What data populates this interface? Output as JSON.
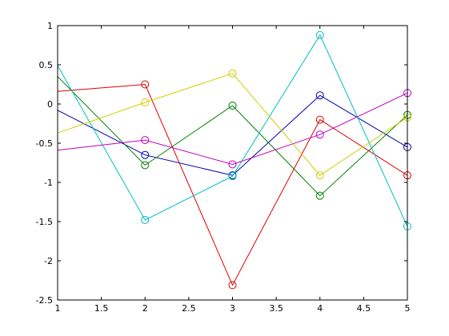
{
  "chart_data": {
    "type": "line",
    "title": "",
    "xlabel": "",
    "ylabel": "",
    "xlim": [
      1,
      5
    ],
    "ylim": [
      -2.5,
      1
    ],
    "grid": false,
    "x_ticks": [
      "1",
      "1.5",
      "2",
      "2.5",
      "3",
      "3.5",
      "4",
      "4.5",
      "5"
    ],
    "y_ticks": [
      "1",
      "0.5",
      "0",
      "-0.5",
      "-1",
      "-1.5",
      "-2",
      "-2.5"
    ],
    "x_tick_values": [
      1,
      1.5,
      2,
      2.5,
      3,
      3.5,
      4,
      4.5,
      5
    ],
    "y_tick_values": [
      1,
      0.5,
      0,
      -0.5,
      -1,
      -1.5,
      -2,
      -2.5
    ],
    "marker_x": [
      2,
      3,
      4,
      5
    ],
    "x": [
      1,
      2,
      3,
      4,
      5
    ],
    "series": [
      {
        "color": "#0000aa",
        "values": [
          -0.08,
          -0.65,
          -0.91,
          0.11,
          -0.55
        ]
      },
      {
        "color": "#007f00",
        "values": [
          0.35,
          -0.78,
          -0.02,
          -1.17,
          -0.14
        ]
      },
      {
        "color": "#dd0000",
        "values": [
          0.16,
          0.25,
          -2.31,
          -0.2,
          -0.91
        ]
      },
      {
        "color": "#00bfbf",
        "values": [
          0.49,
          -1.48,
          -0.92,
          0.88,
          -1.56
        ]
      },
      {
        "color": "#bf00bf",
        "values": [
          -0.59,
          -0.46,
          -0.77,
          -0.39,
          0.14
        ]
      },
      {
        "color": "#cfcf00",
        "values": [
          -0.37,
          0.02,
          0.39,
          -0.91,
          -0.17
        ]
      }
    ]
  }
}
